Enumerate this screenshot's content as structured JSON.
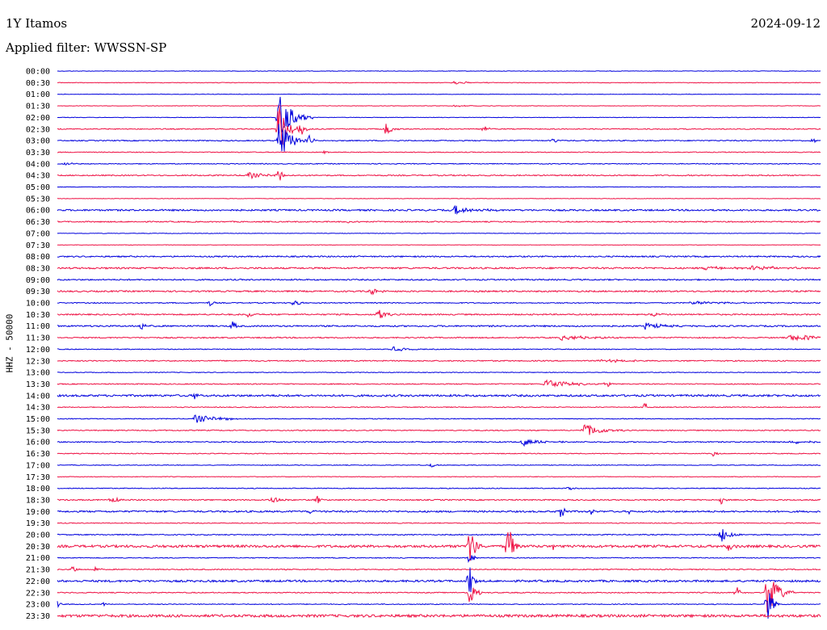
{
  "header": {
    "station": "1Y Itamos",
    "date": "2024-09-12",
    "filter": "Applied filter: WWSSN-SP",
    "ylabel": "HHZ - 50000"
  },
  "colors": {
    "even_trace": "#0000dd",
    "odd_trace": "#ee1144"
  },
  "chart_data": {
    "type": "line",
    "title": "",
    "xlabel": "",
    "ylabel": "HHZ - 50000",
    "grid": false,
    "legend": "none",
    "rows": [
      "00:00",
      "00:30",
      "01:00",
      "01:30",
      "02:00",
      "02:30",
      "03:00",
      "03:30",
      "04:00",
      "04:30",
      "05:00",
      "05:30",
      "06:00",
      "06:30",
      "07:00",
      "07:30",
      "08:00",
      "08:30",
      "09:00",
      "09:30",
      "10:00",
      "10:30",
      "11:00",
      "11:30",
      "12:00",
      "12:30",
      "13:00",
      "13:30",
      "14:00",
      "14:30",
      "15:00",
      "15:30",
      "16:00",
      "16:30",
      "17:00",
      "17:30",
      "18:00",
      "18:30",
      "19:00",
      "19:30",
      "20:00",
      "20:30",
      "21:00",
      "21:30",
      "22:00",
      "22:30",
      "23:00",
      "23:30"
    ],
    "noise": [
      0.3,
      0.35,
      0.3,
      0.3,
      0.3,
      0.6,
      0.6,
      0.5,
      0.5,
      0.7,
      0.3,
      0.3,
      1.0,
      0.7,
      0.3,
      0.3,
      0.8,
      1.0,
      0.8,
      0.9,
      0.6,
      0.8,
      0.9,
      0.7,
      0.5,
      0.7,
      0.4,
      0.6,
      1.2,
      0.5,
      0.5,
      0.6,
      0.7,
      0.5,
      0.4,
      0.4,
      0.5,
      0.7,
      1.0,
      0.5,
      0.6,
      1.5,
      0.5,
      0.6,
      1.2,
      0.6,
      0.5,
      1.6
    ],
    "events": [
      {
        "row": 1,
        "t": 0.52,
        "amp": 2,
        "dur": 0.02
      },
      {
        "row": 3,
        "t": 0.52,
        "amp": 1.2,
        "dur": 0.02
      },
      {
        "row": 4,
        "t": 0.29,
        "amp": 30,
        "dur": 0.015
      },
      {
        "row": 5,
        "t": 0.29,
        "amp": 40,
        "dur": 0.01
      },
      {
        "row": 5,
        "t": 0.32,
        "amp": 9,
        "dur": 0.005
      },
      {
        "row": 5,
        "t": 0.43,
        "amp": 10,
        "dur": 0.006
      },
      {
        "row": 5,
        "t": 0.56,
        "amp": 6,
        "dur": 0.004
      },
      {
        "row": 6,
        "t": 0.29,
        "amp": 30,
        "dur": 0.012
      },
      {
        "row": 6,
        "t": 0.33,
        "amp": 8,
        "dur": 0.004
      },
      {
        "row": 6,
        "t": 0.65,
        "amp": 4,
        "dur": 0.004
      },
      {
        "row": 6,
        "t": 0.99,
        "amp": 4,
        "dur": 0.003
      },
      {
        "row": 7,
        "t": 0.35,
        "amp": 3,
        "dur": 0.006
      },
      {
        "row": 8,
        "t": 0.01,
        "amp": 2,
        "dur": 0.01
      },
      {
        "row": 9,
        "t": 0.25,
        "amp": 4,
        "dur": 0.02
      },
      {
        "row": 9,
        "t": 0.29,
        "amp": 10,
        "dur": 0.005
      },
      {
        "row": 12,
        "t": 0.52,
        "amp": 6,
        "dur": 0.02
      },
      {
        "row": 13,
        "t": 0.38,
        "amp": 2,
        "dur": 0.008
      },
      {
        "row": 17,
        "t": 0.85,
        "amp": 3,
        "dur": 0.02
      },
      {
        "row": 17,
        "t": 0.91,
        "amp": 3,
        "dur": 0.03
      },
      {
        "row": 19,
        "t": 0.41,
        "amp": 5,
        "dur": 0.01
      },
      {
        "row": 20,
        "t": 0.2,
        "amp": 5,
        "dur": 0.004
      },
      {
        "row": 20,
        "t": 0.31,
        "amp": 6,
        "dur": 0.005
      },
      {
        "row": 20,
        "t": 0.83,
        "amp": 2,
        "dur": 0.05
      },
      {
        "row": 21,
        "t": 0.25,
        "amp": 5,
        "dur": 0.004
      },
      {
        "row": 21,
        "t": 0.42,
        "amp": 9,
        "dur": 0.008
      },
      {
        "row": 21,
        "t": 0.78,
        "amp": 3,
        "dur": 0.008
      },
      {
        "row": 22,
        "t": 0.11,
        "amp": 6,
        "dur": 0.006
      },
      {
        "row": 22,
        "t": 0.23,
        "amp": 8,
        "dur": 0.003
      },
      {
        "row": 22,
        "t": 0.77,
        "amp": 4,
        "dur": 0.02
      },
      {
        "row": 23,
        "t": 0.66,
        "amp": 3,
        "dur": 0.04
      },
      {
        "row": 23,
        "t": 0.96,
        "amp": 4,
        "dur": 0.05
      },
      {
        "row": 24,
        "t": 0.44,
        "amp": 3,
        "dur": 0.015
      },
      {
        "row": 25,
        "t": 0.71,
        "amp": 2,
        "dur": 0.04
      },
      {
        "row": 27,
        "t": 0.64,
        "amp": 6,
        "dur": 0.03
      },
      {
        "row": 27,
        "t": 0.72,
        "amp": 6,
        "dur": 0.003
      },
      {
        "row": 28,
        "t": 0.18,
        "amp": 5,
        "dur": 0.004
      },
      {
        "row": 29,
        "t": 0.77,
        "amp": 8,
        "dur": 0.003
      },
      {
        "row": 30,
        "t": 0.18,
        "amp": 5,
        "dur": 0.03
      },
      {
        "row": 31,
        "t": 0.69,
        "amp": 9,
        "dur": 0.02
      },
      {
        "row": 32,
        "t": 0.61,
        "amp": 5,
        "dur": 0.02
      },
      {
        "row": 32,
        "t": 0.96,
        "amp": 2,
        "dur": 0.03
      },
      {
        "row": 33,
        "t": 0.86,
        "amp": 5,
        "dur": 0.004
      },
      {
        "row": 34,
        "t": 0.49,
        "amp": 3,
        "dur": 0.005
      },
      {
        "row": 36,
        "t": 0.67,
        "amp": 4,
        "dur": 0.005
      },
      {
        "row": 37,
        "t": 0.07,
        "amp": 5,
        "dur": 0.008
      },
      {
        "row": 37,
        "t": 0.28,
        "amp": 6,
        "dur": 0.01
      },
      {
        "row": 37,
        "t": 0.34,
        "amp": 8,
        "dur": 0.003
      },
      {
        "row": 37,
        "t": 0.87,
        "amp": 8,
        "dur": 0.003
      },
      {
        "row": 38,
        "t": 0.33,
        "amp": 3,
        "dur": 0.008
      },
      {
        "row": 38,
        "t": 0.66,
        "amp": 12,
        "dur": 0.004
      },
      {
        "row": 38,
        "t": 0.7,
        "amp": 6,
        "dur": 0.003
      },
      {
        "row": 38,
        "t": 0.75,
        "amp": 5,
        "dur": 0.003
      },
      {
        "row": 40,
        "t": 0.87,
        "amp": 12,
        "dur": 0.01
      },
      {
        "row": 41,
        "t": 0.54,
        "amp": 30,
        "dur": 0.006
      },
      {
        "row": 41,
        "t": 0.59,
        "amp": 35,
        "dur": 0.006
      },
      {
        "row": 41,
        "t": 0.65,
        "amp": 5,
        "dur": 0.004
      },
      {
        "row": 41,
        "t": 0.88,
        "amp": 8,
        "dur": 0.004
      },
      {
        "row": 42,
        "t": 0.54,
        "amp": 10,
        "dur": 0.004
      },
      {
        "row": 43,
        "t": 0.02,
        "amp": 5,
        "dur": 0.004
      },
      {
        "row": 43,
        "t": 0.05,
        "amp": 4,
        "dur": 0.004
      },
      {
        "row": 44,
        "t": 0.54,
        "amp": 25,
        "dur": 0.004
      },
      {
        "row": 45,
        "t": 0.54,
        "amp": 20,
        "dur": 0.006
      },
      {
        "row": 45,
        "t": 0.89,
        "amp": 9,
        "dur": 0.005
      },
      {
        "row": 45,
        "t": 0.93,
        "amp": 30,
        "dur": 0.012
      },
      {
        "row": 46,
        "t": 0.0,
        "amp": 5,
        "dur": 0.004
      },
      {
        "row": 46,
        "t": 0.06,
        "amp": 3,
        "dur": 0.004
      },
      {
        "row": 46,
        "t": 0.93,
        "amp": 25,
        "dur": 0.006
      }
    ]
  }
}
